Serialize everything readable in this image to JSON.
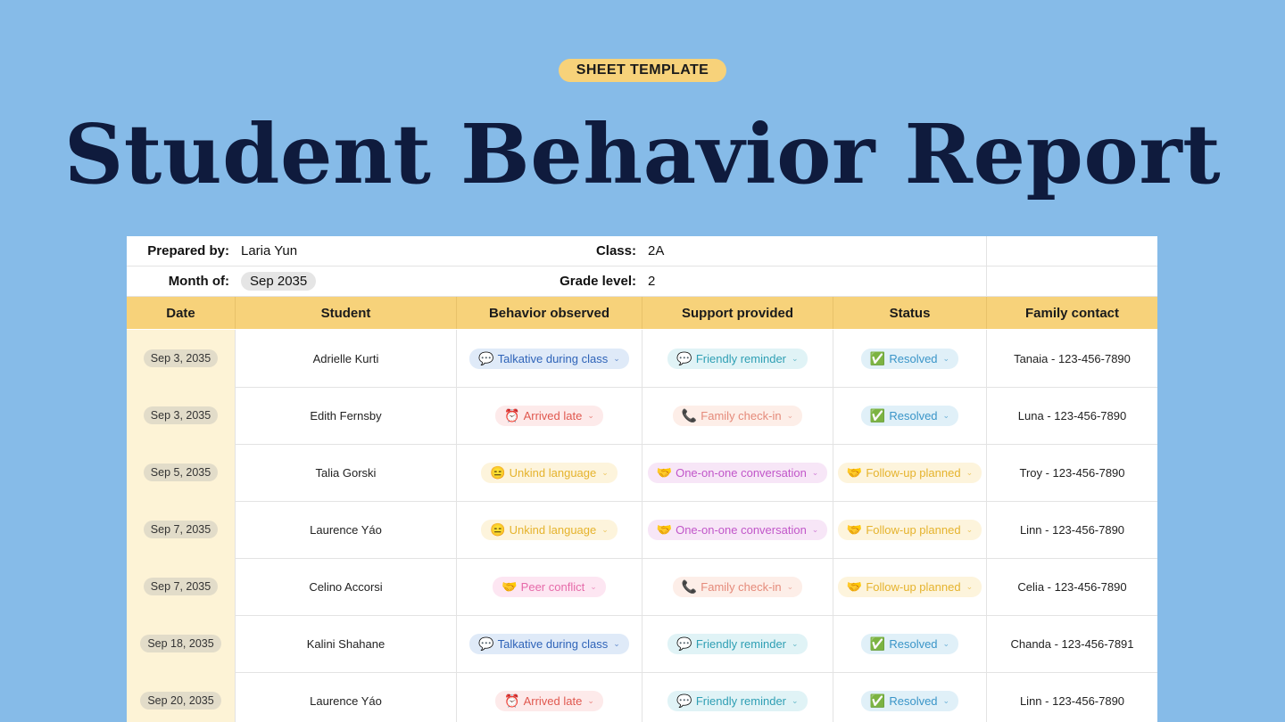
{
  "badge": "SHEET TEMPLATE",
  "title": "Student Behavior Report",
  "meta": {
    "prepared_label": "Prepared by:",
    "prepared_value": "Laria Yun",
    "class_label": "Class:",
    "class_value": "2A",
    "month_label": "Month of:",
    "month_value": "Sep 2035",
    "grade_label": "Grade level:",
    "grade_value": "2"
  },
  "headers": [
    "Date",
    "Student",
    "Behavior observed",
    "Support provided",
    "Status",
    "Family contact"
  ],
  "rows": [
    {
      "date": "Sep 3, 2035",
      "student": "Adrielle Kurti",
      "behavior": "Talkative during class",
      "behavior_emoji": "💬",
      "support": "Friendly reminder",
      "support_emoji": "💬",
      "status": "Resolved",
      "status_emoji": "✅",
      "contact": "Tanaia - 123-456-7890"
    },
    {
      "date": "Sep 3, 2035",
      "student": "Edith Fernsby",
      "behavior": "Arrived late",
      "behavior_emoji": "⏰",
      "support": "Family check-in",
      "support_emoji": "📞",
      "status": "Resolved",
      "status_emoji": "✅",
      "contact": "Luna - 123-456-7890"
    },
    {
      "date": "Sep 5, 2035",
      "student": "Talia Gorski",
      "behavior": "Unkind language",
      "behavior_emoji": "😑",
      "support": "One-on-one conversation",
      "support_emoji": "🤝",
      "status": "Follow-up planned",
      "status_emoji": "🤝",
      "contact": "Troy - 123-456-7890"
    },
    {
      "date": "Sep 7, 2035",
      "student": "Laurence Yáo",
      "behavior": "Unkind language",
      "behavior_emoji": "😑",
      "support": "One-on-one conversation",
      "support_emoji": "🤝",
      "status": "Follow-up planned",
      "status_emoji": "🤝",
      "contact": "Linn - 123-456-7890"
    },
    {
      "date": "Sep 7, 2035",
      "student": "Celino Accorsi",
      "behavior": "Peer conflict",
      "behavior_emoji": "🤝",
      "support": "Family check-in",
      "support_emoji": "📞",
      "status": "Follow-up planned",
      "status_emoji": "🤝",
      "contact": "Celia - 123-456-7890"
    },
    {
      "date": "Sep 18, 2035",
      "student": "Kalini Shahane",
      "behavior": "Talkative during class",
      "behavior_emoji": "💬",
      "support": "Friendly reminder",
      "support_emoji": "💬",
      "status": "Resolved",
      "status_emoji": "✅",
      "contact": "Chanda - 123-456-7891"
    },
    {
      "date": "Sep 20, 2035",
      "student": "Laurence Yáo",
      "behavior": "Arrived late",
      "behavior_emoji": "⏰",
      "support": "Friendly reminder",
      "support_emoji": "💬",
      "status": "Resolved",
      "status_emoji": "✅",
      "contact": "Linn - 123-456-7890"
    }
  ],
  "tag_styles": {
    "Talkative during class": "t-blue",
    "Arrived late": "t-red",
    "Unkind language": "t-yellow",
    "Peer conflict": "t-pink",
    "Friendly reminder": "t-teal",
    "Family check-in": "t-peach",
    "One-on-one conversation": "t-purple",
    "Resolved": "t-res",
    "Follow-up planned": "t-yellow"
  },
  "chevron_icon": "chevron-down-icon"
}
